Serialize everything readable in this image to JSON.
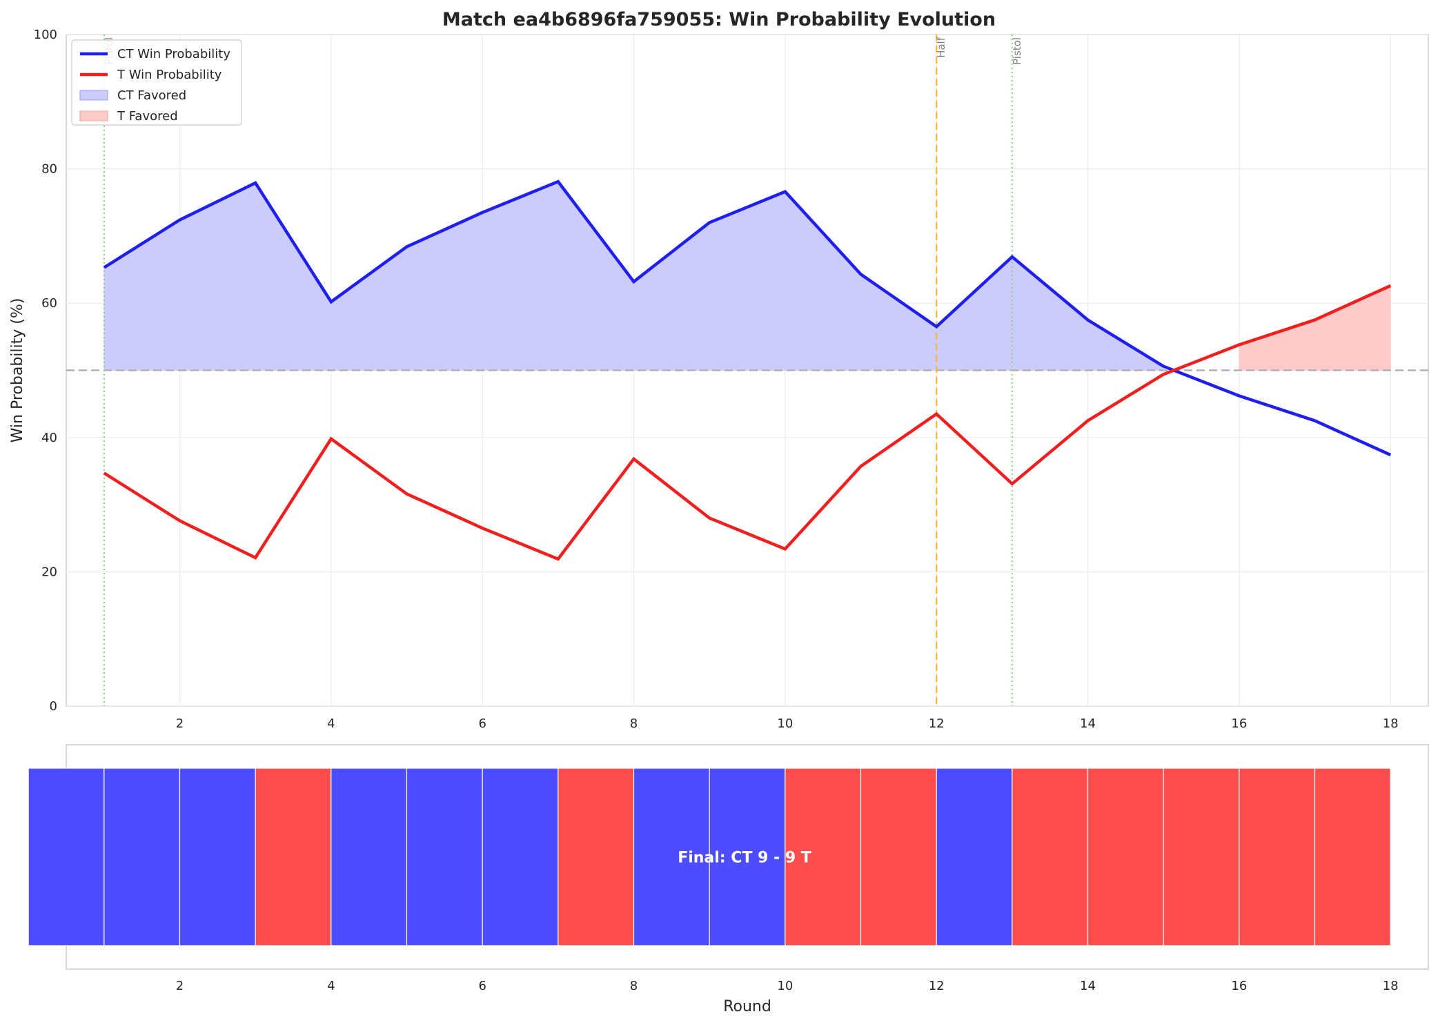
{
  "title": "Match ea4b6896fa759055: Win Probability Evolution",
  "colors": {
    "ct": "#1f1ff2",
    "t": "#f21f1f",
    "ct_fill": "#ccccfc",
    "t_fill": "#fecaca",
    "half_line": "#f5b642",
    "pistol_line": "#8fd48f",
    "ref_line": "#b0b0b0",
    "ct_bar": "#4d4dff",
    "t_bar": "#ff4d4d"
  },
  "chart_data": [
    {
      "type": "line",
      "title": "Match ea4b6896fa759055: Win Probability Evolution",
      "ylabel": "Win Probability (%)",
      "xlabel": "",
      "xlim": [
        0.5,
        18.5
      ],
      "ylim": [
        0,
        100
      ],
      "xticks": [
        2,
        4,
        6,
        8,
        10,
        12,
        14,
        16,
        18
      ],
      "yticks": [
        0,
        20,
        40,
        60,
        80,
        100
      ],
      "grid": true,
      "legend_position": "top-left",
      "x": [
        1,
        2,
        3,
        4,
        5,
        6,
        7,
        8,
        9,
        10,
        11,
        12,
        13,
        14,
        15,
        16,
        17,
        18
      ],
      "series": [
        {
          "name": "CT Win Probability",
          "color": "#1f1ff2",
          "values": [
            65.3,
            72.4,
            77.9,
            60.2,
            68.4,
            73.5,
            78.1,
            63.2,
            72.0,
            76.6,
            64.3,
            56.5,
            66.9,
            57.5,
            50.6,
            46.2,
            42.5,
            37.4
          ]
        },
        {
          "name": "T Win Probability",
          "color": "#f21f1f",
          "values": [
            34.7,
            27.6,
            22.1,
            39.8,
            31.6,
            26.5,
            21.9,
            36.8,
            28.0,
            23.4,
            35.7,
            43.5,
            33.1,
            42.5,
            49.4,
            53.8,
            57.5,
            62.6
          ]
        }
      ],
      "fills": [
        {
          "name": "CT Favored",
          "color": "#ccccfc"
        },
        {
          "name": "T Favored",
          "color": "#fecaca"
        }
      ],
      "reference_line": 50,
      "vertical_markers": [
        {
          "x": 1,
          "label": "Pistol",
          "style": "dotted",
          "color": "#8fd48f"
        },
        {
          "x": 12,
          "label": "Half",
          "style": "dashed",
          "color": "#f5b642"
        },
        {
          "x": 13,
          "label": "Pistol",
          "style": "dotted",
          "color": "#8fd48f"
        }
      ]
    },
    {
      "type": "bar",
      "xlabel": "Round",
      "xlim": [
        0.5,
        18.5
      ],
      "xticks": [
        2,
        4,
        6,
        8,
        10,
        12,
        14,
        16,
        18
      ],
      "rounds": [
        1,
        2,
        3,
        4,
        5,
        6,
        7,
        8,
        9,
        10,
        11,
        12,
        13,
        14,
        15,
        16,
        17,
        18
      ],
      "winners": [
        "CT",
        "CT",
        "CT",
        "T",
        "CT",
        "CT",
        "CT",
        "T",
        "CT",
        "CT",
        "T",
        "T",
        "CT",
        "T",
        "T",
        "T",
        "T",
        "T"
      ],
      "annotation": "Final: CT 9 - 9 T"
    }
  ]
}
